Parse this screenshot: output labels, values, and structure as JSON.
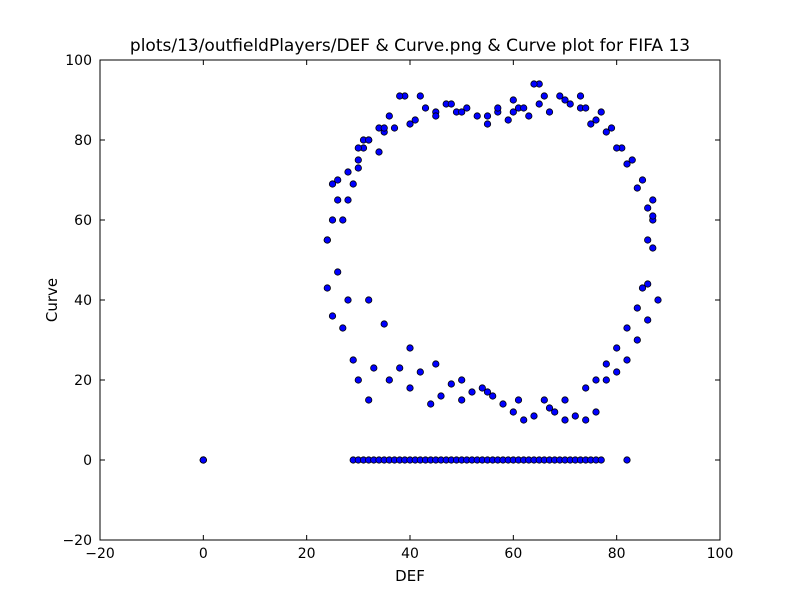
{
  "chart_data": {
    "type": "scatter",
    "title": "plots/13/outfieldPlayers/DEF & Curve.png & Curve plot for FIFA 13",
    "xlabel": "DEF",
    "ylabel": "Curve",
    "xlim": [
      -20,
      100
    ],
    "ylim": [
      -20,
      100
    ],
    "xticks": [
      -20,
      0,
      20,
      40,
      60,
      80,
      100
    ],
    "yticks": [
      -20,
      0,
      20,
      40,
      60,
      80,
      100
    ],
    "xtick_labels": [
      "−20",
      "0",
      "20",
      "40",
      "60",
      "80",
      "100"
    ],
    "ytick_labels": [
      "−20",
      "0",
      "20",
      "40",
      "60",
      "80",
      "100"
    ],
    "grid": false,
    "marker_color": "#0000ff",
    "marker_edge_color": "#000000",
    "series": [
      {
        "x": [
          0,
          0,
          0,
          29,
          30,
          31,
          32,
          33,
          34,
          35,
          36,
          37,
          38,
          39,
          40,
          41,
          42,
          43,
          44,
          45,
          46,
          47,
          48,
          49,
          50,
          51,
          52,
          53,
          54,
          55,
          56,
          57,
          58,
          59,
          60,
          61,
          62,
          63,
          64,
          65,
          66,
          67,
          68,
          69,
          70,
          71,
          72,
          73,
          74,
          75,
          76,
          77,
          82,
          24,
          24,
          25,
          25,
          26,
          26,
          27,
          27,
          28,
          28,
          29,
          30,
          30,
          31,
          32,
          32,
          33,
          34,
          35,
          36,
          37,
          38,
          39,
          40,
          41,
          42,
          43,
          44,
          45,
          46,
          47,
          48,
          49,
          50,
          51,
          52,
          53,
          54,
          55,
          56,
          57,
          58,
          59,
          60,
          61,
          62,
          63,
          64,
          65,
          66,
          67,
          68,
          69,
          70,
          71,
          72,
          73,
          74,
          75,
          76,
          77,
          78,
          79,
          80,
          81,
          82,
          83,
          84,
          85,
          86,
          87,
          88,
          87,
          86,
          85,
          64,
          38,
          42,
          66,
          73,
          62,
          60,
          57,
          48,
          36,
          34,
          31,
          30,
          29,
          32,
          35,
          40,
          45,
          50,
          55,
          61,
          67,
          70,
          74,
          76,
          78,
          80,
          82,
          84,
          86,
          87,
          87,
          86,
          84,
          82,
          80,
          78,
          76,
          74,
          70,
          65,
          60,
          55,
          50,
          45,
          40,
          35,
          32,
          30,
          28,
          26,
          25,
          24
        ],
        "y": [
          0,
          0,
          0,
          0,
          0,
          0,
          0,
          0,
          0,
          0,
          0,
          0,
          0,
          0,
          0,
          0,
          0,
          0,
          0,
          0,
          0,
          0,
          0,
          0,
          0,
          0,
          0,
          0,
          0,
          0,
          0,
          0,
          0,
          0,
          0,
          0,
          0,
          0,
          0,
          0,
          0,
          0,
          0,
          0,
          0,
          0,
          0,
          0,
          0,
          0,
          0,
          0,
          0,
          55,
          43,
          69,
          36,
          70,
          47,
          60,
          33,
          65,
          40,
          25,
          73,
          20,
          78,
          15,
          80,
          23,
          77,
          82,
          20,
          83,
          23,
          91,
          18,
          85,
          22,
          88,
          14,
          87,
          16,
          89,
          19,
          87,
          15,
          88,
          17,
          86,
          18,
          84,
          16,
          87,
          14,
          85,
          12,
          88,
          10,
          86,
          11,
          94,
          15,
          87,
          12,
          91,
          10,
          89,
          11,
          88,
          10,
          84,
          12,
          87,
          20,
          83,
          22,
          78,
          25,
          75,
          30,
          70,
          35,
          65,
          40,
          60,
          55,
          43,
          94,
          91,
          91,
          91,
          91,
          88,
          90,
          88,
          89,
          86,
          83,
          80,
          75,
          69,
          40,
          34,
          28,
          24,
          20,
          17,
          15,
          13,
          15,
          18,
          20,
          24,
          28,
          33,
          38,
          44,
          53,
          61,
          63,
          68,
          74,
          78,
          82,
          85,
          88,
          90,
          89,
          87,
          86,
          87,
          86,
          84,
          83,
          80,
          78,
          72,
          65,
          60,
          55
        ]
      }
    ]
  }
}
